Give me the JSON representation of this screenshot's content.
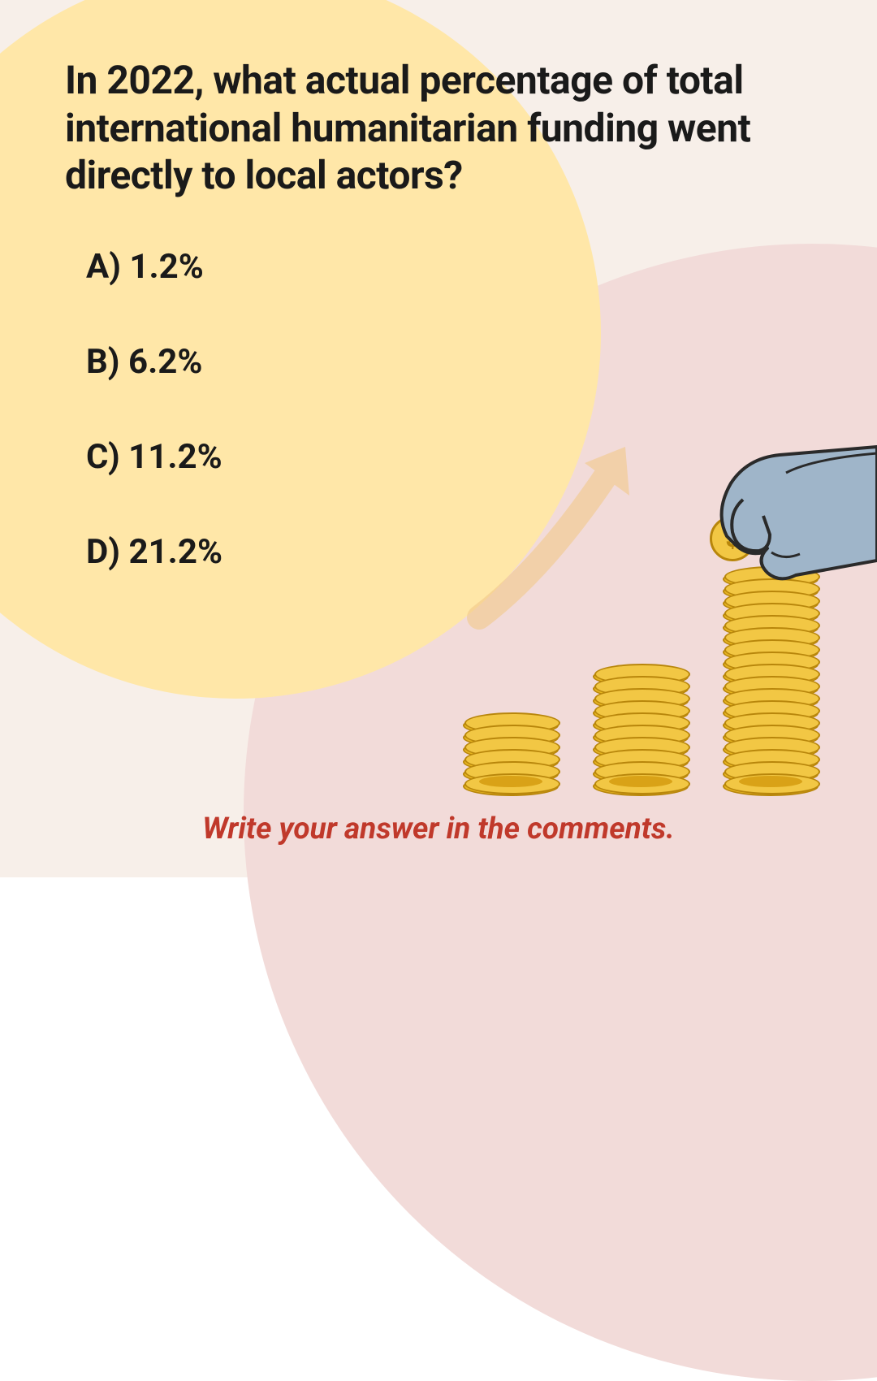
{
  "question": "In 2022, what actual percentage of total international humanitarian funding went directly to local actors?",
  "options": {
    "a": "A) 1.2%",
    "b": "B) 6.2%",
    "c": "C) 11.2%",
    "d": "D) 21.2%"
  },
  "cta": "Write your answer in the comments.",
  "illustration": {
    "stack_heights": [
      6,
      10,
      18
    ],
    "coin_fill": "#f2c744",
    "coin_side": "#e6b422",
    "coin_stroke": "#b8860b",
    "hand_fill": "#9fb5c9",
    "hand_stroke": "#2a2a2a",
    "arrow_color": "#f2c98a",
    "drop_coin_symbol": "$"
  },
  "colors": {
    "bg_base": "#f7efe9",
    "bg_pink": "#f2dbd9",
    "bg_yellow": "#ffe7a8",
    "text": "#1a1a1a",
    "cta": "#c0392b"
  },
  "typography": {
    "question_fontsize": 48,
    "question_weight": 700,
    "option_fontsize": 42,
    "option_weight": 700,
    "cta_fontsize": 37,
    "cta_weight": 700,
    "cta_style": "italic"
  }
}
